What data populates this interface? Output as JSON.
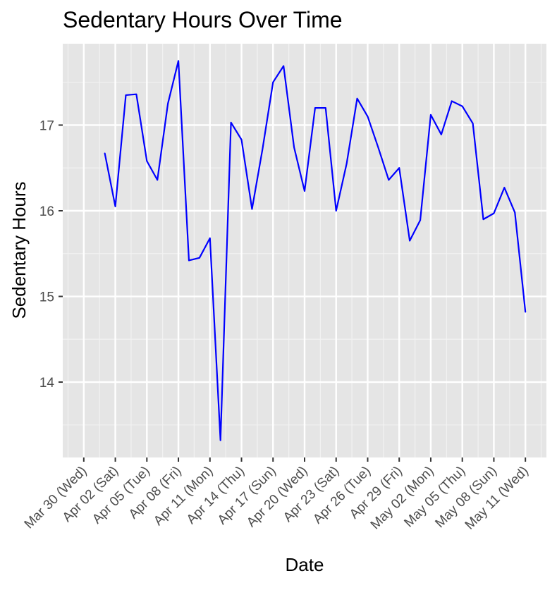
{
  "chart_data": {
    "type": "line",
    "title": "Sedentary Hours Over Time",
    "xlabel": "Date",
    "ylabel": "Sedentary Hours",
    "xlim": [
      "2022-03-28",
      "2022-05-13"
    ],
    "ylim": [
      13.12,
      17.95
    ],
    "grid": true,
    "line_color": "#0000ff",
    "panel_background": "#e5e5e5",
    "x_ticks": [
      {
        "date": "2022-03-30",
        "label": "Mar 30 (Wed)"
      },
      {
        "date": "2022-04-02",
        "label": "Apr 02 (Sat)"
      },
      {
        "date": "2022-04-05",
        "label": "Apr 05 (Tue)"
      },
      {
        "date": "2022-04-08",
        "label": "Apr 08 (Fri)"
      },
      {
        "date": "2022-04-11",
        "label": "Apr 11 (Mon)"
      },
      {
        "date": "2022-04-14",
        "label": "Apr 14 (Thu)"
      },
      {
        "date": "2022-04-17",
        "label": "Apr 17 (Sun)"
      },
      {
        "date": "2022-04-20",
        "label": "Apr 20 (Wed)"
      },
      {
        "date": "2022-04-23",
        "label": "Apr 23 (Sat)"
      },
      {
        "date": "2022-04-26",
        "label": "Apr 26 (Tue)"
      },
      {
        "date": "2022-04-29",
        "label": "Apr 29 (Fri)"
      },
      {
        "date": "2022-05-02",
        "label": "May 02 (Mon)"
      },
      {
        "date": "2022-05-05",
        "label": "May 05 (Thu)"
      },
      {
        "date": "2022-05-08",
        "label": "May 08 (Sun)"
      },
      {
        "date": "2022-05-11",
        "label": "May 11 (Wed)"
      }
    ],
    "y_ticks": [
      14,
      15,
      16,
      17
    ],
    "series": [
      {
        "x": [
          "2022-04-01",
          "2022-04-02",
          "2022-04-03",
          "2022-04-04",
          "2022-04-05",
          "2022-04-06",
          "2022-04-07",
          "2022-04-08",
          "2022-04-09",
          "2022-04-10",
          "2022-04-11",
          "2022-04-12",
          "2022-04-13",
          "2022-04-14",
          "2022-04-15",
          "2022-04-16",
          "2022-04-17",
          "2022-04-18",
          "2022-04-19",
          "2022-04-20",
          "2022-04-21",
          "2022-04-22",
          "2022-04-23",
          "2022-04-24",
          "2022-04-25",
          "2022-04-26",
          "2022-04-27",
          "2022-04-28",
          "2022-04-29",
          "2022-04-30",
          "2022-05-01",
          "2022-05-02",
          "2022-05-03",
          "2022-05-04",
          "2022-05-05",
          "2022-05-06",
          "2022-05-07",
          "2022-05-08",
          "2022-05-09",
          "2022-05-10",
          "2022-05-11"
        ],
        "values": [
          16.67,
          16.05,
          17.35,
          17.36,
          16.58,
          16.36,
          17.25,
          17.75,
          15.42,
          15.45,
          15.68,
          13.32,
          17.03,
          16.83,
          16.02,
          16.72,
          17.5,
          17.69,
          16.74,
          16.23,
          17.2,
          17.2,
          16.0,
          16.55,
          17.31,
          17.1,
          16.74,
          16.36,
          16.5,
          15.65,
          15.89,
          17.12,
          16.89,
          17.28,
          17.22,
          17.02,
          15.9,
          15.97,
          16.27,
          15.98,
          14.82
        ]
      }
    ]
  }
}
